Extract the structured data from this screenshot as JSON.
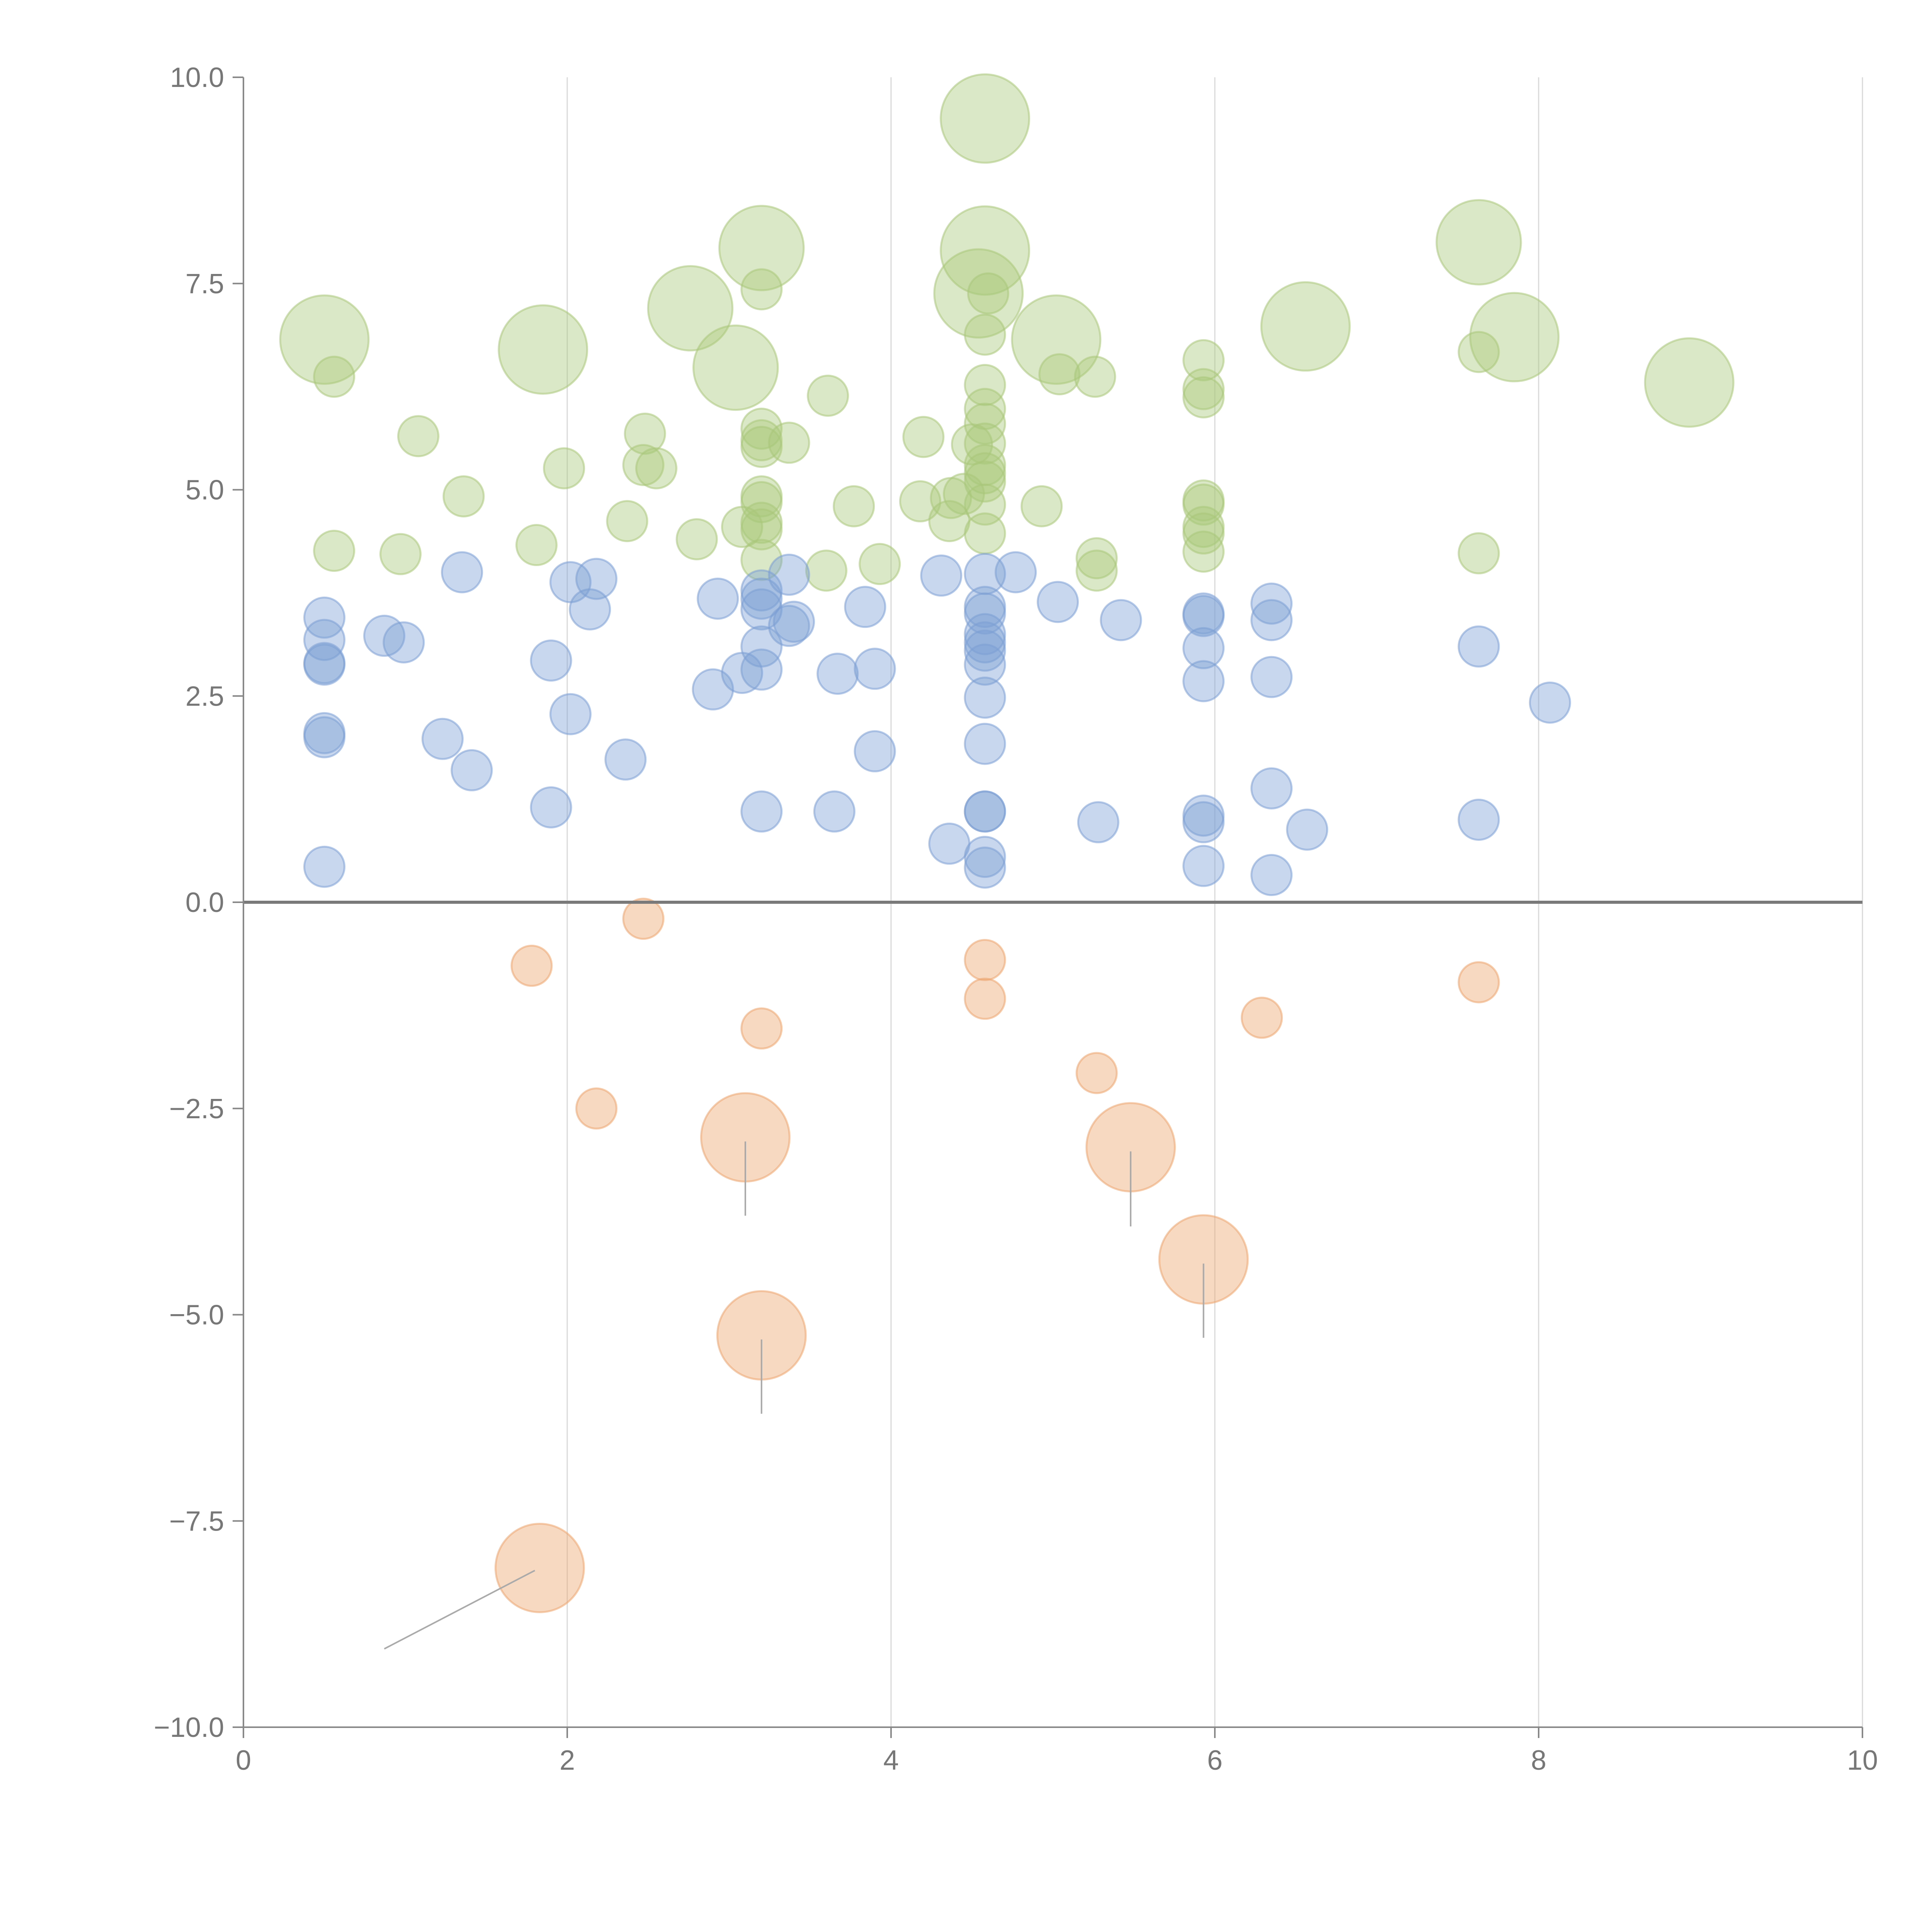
{
  "chart_data": {
    "type": "scatter",
    "title": "",
    "xlabel": "",
    "ylabel": "",
    "xlim": [
      0,
      10
    ],
    "ylim": [
      -10,
      10
    ],
    "x_ticks": [
      0,
      2,
      4,
      6,
      8,
      10
    ],
    "x_tick_labels": [
      "0",
      "2",
      "4",
      "6",
      "8",
      "10"
    ],
    "y_ticks": [
      10,
      7.5,
      5,
      2.5,
      0,
      -2.5,
      -5,
      -7.5,
      -10
    ],
    "y_tick_labels": [
      "10.0",
      "7.5",
      "5.0",
      "2.5",
      "0.0",
      "−2.5",
      "−5.0",
      "−7.5",
      "−10.0"
    ],
    "grid": "vertical",
    "zero_line": true,
    "colors": {
      "green": "#a9c77a",
      "blue": "#7b9fd4",
      "orange": "#eda46d",
      "leader": "#aaaaaa"
    },
    "series": [
      {
        "name": "green",
        "color": "#a9c77a",
        "points": [
          {
            "x": 4.58,
            "y": 9.5,
            "size": 2.2
          },
          {
            "x": 3.2,
            "y": 7.93,
            "size": 2.1
          },
          {
            "x": 4.58,
            "y": 7.9,
            "size": 2.2
          },
          {
            "x": 7.63,
            "y": 8.0,
            "size": 2.1
          },
          {
            "x": 2.76,
            "y": 7.2,
            "size": 2.1
          },
          {
            "x": 4.54,
            "y": 7.38,
            "size": 2.2
          },
          {
            "x": 3.04,
            "y": 6.48,
            "size": 2.1
          },
          {
            "x": 0.5,
            "y": 6.82,
            "size": 2.2
          },
          {
            "x": 1.85,
            "y": 6.7,
            "size": 2.2
          },
          {
            "x": 5.02,
            "y": 6.82,
            "size": 2.2
          },
          {
            "x": 6.56,
            "y": 6.98,
            "size": 2.2
          },
          {
            "x": 7.85,
            "y": 6.85,
            "size": 2.2
          },
          {
            "x": 8.93,
            "y": 6.3,
            "size": 2.2
          },
          {
            "x": 3.2,
            "y": 7.43,
            "size": 1
          },
          {
            "x": 4.6,
            "y": 7.38,
            "size": 1
          },
          {
            "x": 4.58,
            "y": 6.88,
            "size": 1
          },
          {
            "x": 0.56,
            "y": 6.37,
            "size": 1
          },
          {
            "x": 5.04,
            "y": 6.4,
            "size": 1
          },
          {
            "x": 5.26,
            "y": 6.37,
            "size": 1
          },
          {
            "x": 5.93,
            "y": 6.57,
            "size": 1
          },
          {
            "x": 5.93,
            "y": 6.22,
            "size": 1
          },
          {
            "x": 5.93,
            "y": 6.12,
            "size": 1
          },
          {
            "x": 7.63,
            "y": 6.67,
            "size": 1
          },
          {
            "x": 3.61,
            "y": 6.14,
            "size": 1
          },
          {
            "x": 4.58,
            "y": 6.27,
            "size": 1
          },
          {
            "x": 4.58,
            "y": 5.98,
            "size": 1
          },
          {
            "x": 4.58,
            "y": 5.8,
            "size": 1
          },
          {
            "x": 4.58,
            "y": 5.56,
            "size": 1
          },
          {
            "x": 4.5,
            "y": 5.55,
            "size": 1
          },
          {
            "x": 4.58,
            "y": 5.3,
            "size": 1
          },
          {
            "x": 4.58,
            "y": 5.2,
            "size": 1
          },
          {
            "x": 4.58,
            "y": 5.1,
            "size": 1
          },
          {
            "x": 4.58,
            "y": 4.82,
            "size": 1
          },
          {
            "x": 4.58,
            "y": 4.47,
            "size": 1
          },
          {
            "x": 1.08,
            "y": 5.65,
            "size": 1
          },
          {
            "x": 2.48,
            "y": 5.68,
            "size": 1
          },
          {
            "x": 3.2,
            "y": 5.74,
            "size": 1
          },
          {
            "x": 3.2,
            "y": 5.6,
            "size": 1
          },
          {
            "x": 3.2,
            "y": 5.52,
            "size": 1
          },
          {
            "x": 3.37,
            "y": 5.57,
            "size": 1
          },
          {
            "x": 4.2,
            "y": 5.64,
            "size": 1
          },
          {
            "x": 1.98,
            "y": 5.26,
            "size": 1
          },
          {
            "x": 2.47,
            "y": 5.3,
            "size": 1
          },
          {
            "x": 2.55,
            "y": 5.26,
            "size": 1
          },
          {
            "x": 1.36,
            "y": 4.92,
            "size": 1
          },
          {
            "x": 3.2,
            "y": 4.92,
            "size": 1
          },
          {
            "x": 3.2,
            "y": 4.85,
            "size": 1
          },
          {
            "x": 3.2,
            "y": 4.6,
            "size": 1
          },
          {
            "x": 3.2,
            "y": 4.52,
            "size": 1
          },
          {
            "x": 3.2,
            "y": 4.15,
            "size": 1
          },
          {
            "x": 3.08,
            "y": 4.55,
            "size": 1
          },
          {
            "x": 2.37,
            "y": 4.62,
            "size": 1
          },
          {
            "x": 2.8,
            "y": 4.4,
            "size": 1
          },
          {
            "x": 1.81,
            "y": 4.33,
            "size": 1
          },
          {
            "x": 0.56,
            "y": 4.26,
            "size": 1
          },
          {
            "x": 0.97,
            "y": 4.22,
            "size": 1
          },
          {
            "x": 3.77,
            "y": 4.8,
            "size": 1
          },
          {
            "x": 4.18,
            "y": 4.86,
            "size": 1
          },
          {
            "x": 4.37,
            "y": 4.9,
            "size": 1
          },
          {
            "x": 4.45,
            "y": 4.95,
            "size": 1
          },
          {
            "x": 4.36,
            "y": 4.62,
            "size": 1
          },
          {
            "x": 4.93,
            "y": 4.8,
            "size": 1
          },
          {
            "x": 3.6,
            "y": 4.02,
            "size": 1
          },
          {
            "x": 3.93,
            "y": 4.1,
            "size": 1
          },
          {
            "x": 5.27,
            "y": 4.17,
            "size": 1
          },
          {
            "x": 5.27,
            "y": 4.02,
            "size": 1
          },
          {
            "x": 5.93,
            "y": 4.87,
            "size": 1
          },
          {
            "x": 5.93,
            "y": 4.82,
            "size": 1
          },
          {
            "x": 5.93,
            "y": 4.55,
            "size": 1
          },
          {
            "x": 5.93,
            "y": 4.47,
            "size": 1
          },
          {
            "x": 5.93,
            "y": 4.25,
            "size": 1
          },
          {
            "x": 7.63,
            "y": 4.23,
            "size": 1
          }
        ]
      },
      {
        "name": "blue",
        "color": "#7b9fd4",
        "points": [
          {
            "x": 0.5,
            "y": 3.45,
            "size": 1
          },
          {
            "x": 0.5,
            "y": 3.18,
            "size": 1
          },
          {
            "x": 0.5,
            "y": 2.9,
            "size": 1
          },
          {
            "x": 0.5,
            "y": 2.88,
            "size": 1
          },
          {
            "x": 0.5,
            "y": 2.05,
            "size": 1
          },
          {
            "x": 0.5,
            "y": 2.0,
            "size": 1
          },
          {
            "x": 0.5,
            "y": 0.43,
            "size": 1
          },
          {
            "x": 0.87,
            "y": 3.23,
            "size": 1
          },
          {
            "x": 0.99,
            "y": 3.15,
            "size": 1
          },
          {
            "x": 1.35,
            "y": 4.0,
            "size": 1
          },
          {
            "x": 1.23,
            "y": 1.98,
            "size": 1
          },
          {
            "x": 1.41,
            "y": 1.6,
            "size": 1
          },
          {
            "x": 1.9,
            "y": 2.93,
            "size": 1
          },
          {
            "x": 1.9,
            "y": 1.15,
            "size": 1
          },
          {
            "x": 2.02,
            "y": 3.88,
            "size": 1
          },
          {
            "x": 2.18,
            "y": 3.92,
            "size": 1
          },
          {
            "x": 2.14,
            "y": 3.55,
            "size": 1
          },
          {
            "x": 2.02,
            "y": 2.28,
            "size": 1
          },
          {
            "x": 2.36,
            "y": 1.73,
            "size": 1
          },
          {
            "x": 2.93,
            "y": 3.68,
            "size": 1
          },
          {
            "x": 2.9,
            "y": 2.58,
            "size": 1
          },
          {
            "x": 3.08,
            "y": 2.78,
            "size": 1
          },
          {
            "x": 3.2,
            "y": 3.78,
            "size": 1
          },
          {
            "x": 3.2,
            "y": 3.68,
            "size": 1
          },
          {
            "x": 3.2,
            "y": 3.55,
            "size": 1
          },
          {
            "x": 3.2,
            "y": 3.1,
            "size": 1
          },
          {
            "x": 3.2,
            "y": 2.82,
            "size": 1
          },
          {
            "x": 3.2,
            "y": 1.1,
            "size": 1
          },
          {
            "x": 3.37,
            "y": 3.97,
            "size": 1
          },
          {
            "x": 3.37,
            "y": 3.35,
            "size": 1
          },
          {
            "x": 3.4,
            "y": 3.4,
            "size": 1
          },
          {
            "x": 3.67,
            "y": 2.77,
            "size": 1
          },
          {
            "x": 3.65,
            "y": 1.1,
            "size": 1
          },
          {
            "x": 3.84,
            "y": 3.58,
            "size": 1
          },
          {
            "x": 3.9,
            "y": 2.83,
            "size": 1
          },
          {
            "x": 3.9,
            "y": 1.83,
            "size": 1
          },
          {
            "x": 4.31,
            "y": 3.96,
            "size": 1
          },
          {
            "x": 4.36,
            "y": 0.71,
            "size": 1
          },
          {
            "x": 4.58,
            "y": 3.98,
            "size": 1
          },
          {
            "x": 4.58,
            "y": 3.58,
            "size": 1
          },
          {
            "x": 4.58,
            "y": 3.5,
            "size": 1
          },
          {
            "x": 4.58,
            "y": 3.25,
            "size": 1
          },
          {
            "x": 4.58,
            "y": 3.15,
            "size": 1
          },
          {
            "x": 4.58,
            "y": 3.05,
            "size": 1
          },
          {
            "x": 4.58,
            "y": 2.88,
            "size": 1
          },
          {
            "x": 4.58,
            "y": 2.48,
            "size": 1
          },
          {
            "x": 4.58,
            "y": 1.92,
            "size": 1
          },
          {
            "x": 4.58,
            "y": 1.1,
            "size": 1
          },
          {
            "x": 4.58,
            "y": 1.1,
            "size": 1
          },
          {
            "x": 4.58,
            "y": 0.55,
            "size": 1
          },
          {
            "x": 4.58,
            "y": 0.42,
            "size": 1
          },
          {
            "x": 4.77,
            "y": 4.0,
            "size": 1
          },
          {
            "x": 5.03,
            "y": 3.64,
            "size": 1
          },
          {
            "x": 5.28,
            "y": 0.97,
            "size": 1
          },
          {
            "x": 5.42,
            "y": 3.42,
            "size": 1
          },
          {
            "x": 5.93,
            "y": 3.5,
            "size": 1
          },
          {
            "x": 5.93,
            "y": 3.47,
            "size": 1
          },
          {
            "x": 5.93,
            "y": 3.08,
            "size": 1
          },
          {
            "x": 5.93,
            "y": 2.68,
            "size": 1
          },
          {
            "x": 5.93,
            "y": 1.05,
            "size": 1
          },
          {
            "x": 5.93,
            "y": 0.97,
            "size": 1
          },
          {
            "x": 5.93,
            "y": 0.44,
            "size": 1
          },
          {
            "x": 6.35,
            "y": 3.62,
            "size": 1
          },
          {
            "x": 6.35,
            "y": 3.42,
            "size": 1
          },
          {
            "x": 6.35,
            "y": 2.73,
            "size": 1
          },
          {
            "x": 6.35,
            "y": 1.38,
            "size": 1
          },
          {
            "x": 6.35,
            "y": 0.33,
            "size": 1
          },
          {
            "x": 6.57,
            "y": 0.88,
            "size": 1
          },
          {
            "x": 7.63,
            "y": 3.1,
            "size": 1
          },
          {
            "x": 7.63,
            "y": 1.0,
            "size": 1
          },
          {
            "x": 8.07,
            "y": 2.42,
            "size": 1
          }
        ]
      },
      {
        "name": "orange",
        "color": "#eda46d",
        "points": [
          {
            "x": 2.47,
            "y": -0.2,
            "size": 1
          },
          {
            "x": 1.78,
            "y": -0.77,
            "size": 1
          },
          {
            "x": 3.2,
            "y": -1.53,
            "size": 1
          },
          {
            "x": 2.18,
            "y": -2.5,
            "size": 1
          },
          {
            "x": 4.58,
            "y": -0.7,
            "size": 1
          },
          {
            "x": 4.58,
            "y": -1.17,
            "size": 1
          },
          {
            "x": 5.27,
            "y": -2.07,
            "size": 1
          },
          {
            "x": 6.29,
            "y": -1.4,
            "size": 1
          },
          {
            "x": 7.63,
            "y": -0.97,
            "size": 1
          },
          {
            "x": 3.1,
            "y": -2.85,
            "size": 2.2
          },
          {
            "x": 5.48,
            "y": -2.97,
            "size": 2.2
          },
          {
            "x": 5.93,
            "y": -4.33,
            "size": 2.2
          },
          {
            "x": 3.2,
            "y": -5.25,
            "size": 2.2
          },
          {
            "x": 1.83,
            "y": -8.07,
            "size": 2.2
          }
        ]
      }
    ],
    "leader_lines": [
      {
        "from": [
          3.1,
          -2.9
        ],
        "to": [
          3.1,
          -3.8
        ]
      },
      {
        "from": [
          5.48,
          -3.02
        ],
        "to": [
          5.48,
          -3.93
        ]
      },
      {
        "from": [
          5.93,
          -4.38
        ],
        "to": [
          5.93,
          -5.28
        ]
      },
      {
        "from": [
          3.2,
          -5.3
        ],
        "to": [
          3.2,
          -6.2
        ]
      },
      {
        "from": [
          1.8,
          -8.1
        ],
        "to": [
          0.87,
          -9.05
        ]
      }
    ]
  }
}
